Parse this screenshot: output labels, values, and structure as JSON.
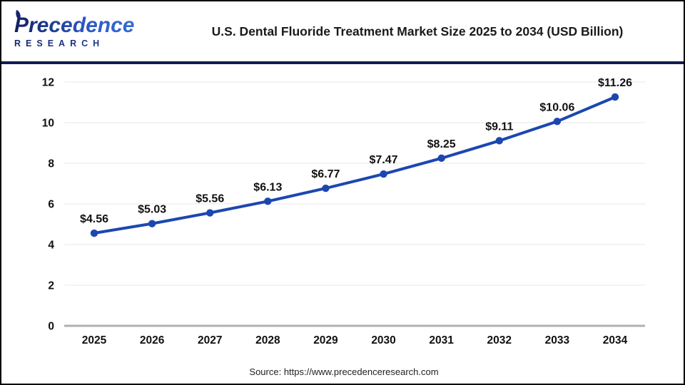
{
  "header": {
    "logo": {
      "name": "Precedence",
      "subtitle": "RESEARCH"
    },
    "title": "U.S. Dental Fluoride Treatment Market Size 2025 to 2034 (USD Billion)"
  },
  "chart_data": {
    "type": "line",
    "title": "U.S. Dental Fluoride Treatment Market Size 2025 to 2034 (USD Billion)",
    "categories": [
      "2025",
      "2026",
      "2027",
      "2028",
      "2029",
      "2030",
      "2031",
      "2032",
      "2033",
      "2034"
    ],
    "values": [
      4.56,
      5.03,
      5.56,
      6.13,
      6.77,
      7.47,
      8.25,
      9.11,
      10.06,
      11.26
    ],
    "point_labels": [
      "$4.56",
      "$5.03",
      "$5.56",
      "$6.13",
      "$6.77",
      "$7.47",
      "$8.25",
      "$9.11",
      "$10.06",
      "$11.26"
    ],
    "xlabel": "",
    "ylabel": "",
    "ylim": [
      0,
      12
    ],
    "yticks": [
      0,
      2,
      4,
      6,
      8,
      10,
      12
    ],
    "grid": true,
    "legend": "none",
    "line_color": "#1c47b0",
    "gridline_color": "#ececec",
    "axis_line_color": "#b0b0b0",
    "label_color": "#111111"
  },
  "footer": {
    "source": "Source: https://www.precedenceresearch.com"
  }
}
